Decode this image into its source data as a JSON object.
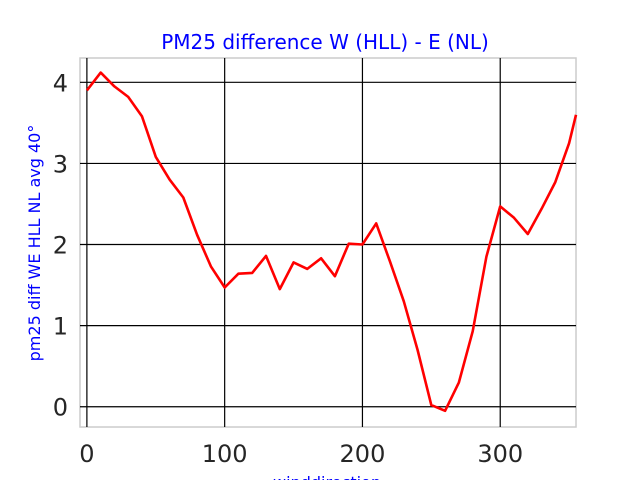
{
  "chart_data": {
    "type": "line",
    "title": "PM25 difference W (HLL) - E (NL)",
    "xlabel": "winddirection",
    "ylabel": "pm25 diff WE HLL NL avg 40°",
    "xlim": [
      -5,
      355
    ],
    "ylim": [
      -0.25,
      4.3
    ],
    "xticks": [
      0,
      100,
      200,
      300
    ],
    "yticks": [
      0,
      1,
      2,
      3,
      4
    ],
    "grid": true,
    "colors": {
      "line": "#ff0000",
      "title": "#0000ff",
      "axis_label": "#0000ff"
    },
    "series": [
      {
        "x": [
          0,
          10,
          20,
          30,
          40,
          50,
          60,
          70,
          80,
          90,
          100,
          110,
          120,
          130,
          140,
          150,
          160,
          170,
          180,
          190,
          200,
          210,
          220,
          230,
          240,
          250,
          260,
          270,
          280,
          290,
          300,
          310,
          320,
          330,
          340,
          350,
          355
        ],
        "y": [
          3.9,
          4.12,
          3.95,
          3.82,
          3.58,
          3.08,
          2.8,
          2.58,
          2.12,
          1.73,
          1.47,
          1.64,
          1.65,
          1.86,
          1.45,
          1.78,
          1.7,
          1.83,
          1.61,
          2.01,
          2.0,
          2.26,
          1.79,
          1.3,
          0.7,
          0.02,
          -0.05,
          0.3,
          0.93,
          1.85,
          2.47,
          2.33,
          2.13,
          2.44,
          2.77,
          3.25,
          3.6
        ]
      }
    ]
  }
}
